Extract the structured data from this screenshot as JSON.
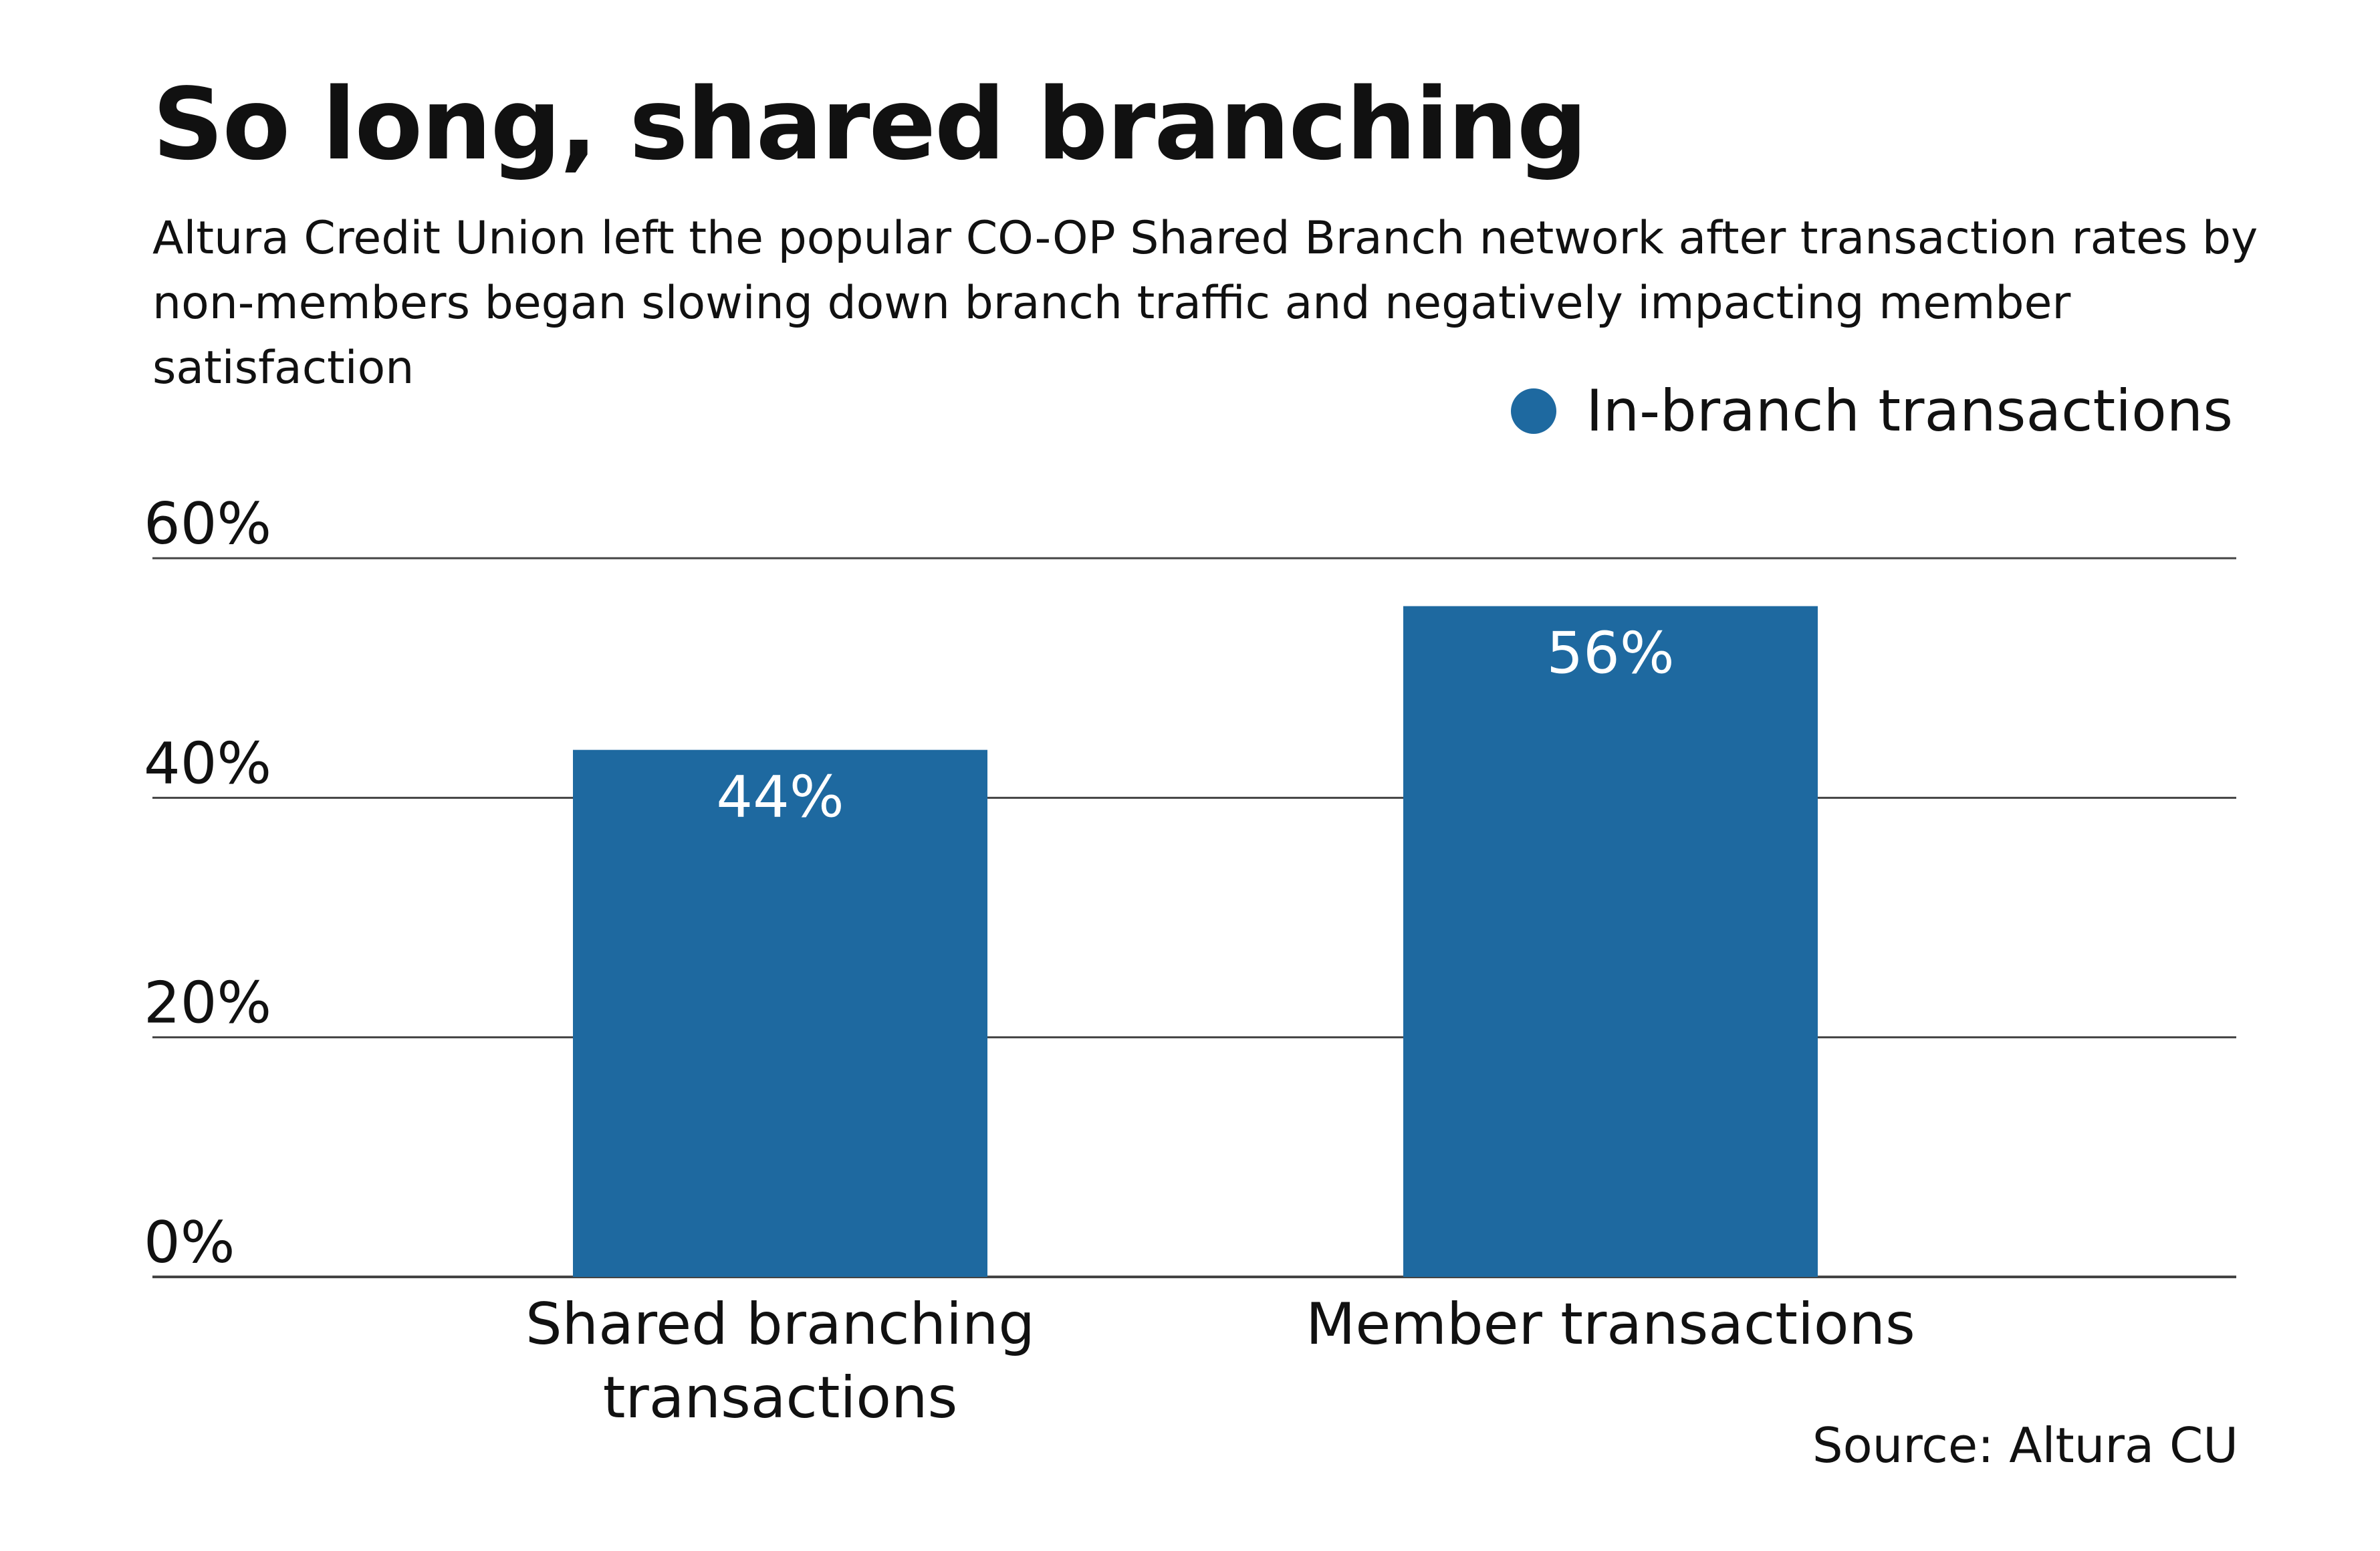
{
  "chart_data": {
    "type": "bar",
    "title": "So long, shared branching",
    "subtitle": "Altura Credit Union left the popular CO-OP Shared Branch network after transaction rates by non-members began slowing down branch traffic and negatively impacting member satisfaction",
    "categories": [
      [
        "Shared branching",
        "transactions"
      ],
      [
        "Member transactions"
      ]
    ],
    "series": [
      {
        "name": "In-branch transactions",
        "values": [
          44,
          56
        ],
        "value_labels": [
          "44%",
          "56%"
        ],
        "color": "#1e69a0"
      }
    ],
    "ylim": [
      0,
      60
    ],
    "yticks": [
      0,
      20,
      40,
      60
    ],
    "ytick_labels": [
      "0%",
      "20%",
      "40%",
      "60%"
    ],
    "grid": true,
    "legend_position": "top-right",
    "source": "Source: Altura CU"
  },
  "colors": {
    "bar": "#1e69a0",
    "gridline": "#444444",
    "text": "#111111",
    "bar_label": "#ffffff"
  }
}
